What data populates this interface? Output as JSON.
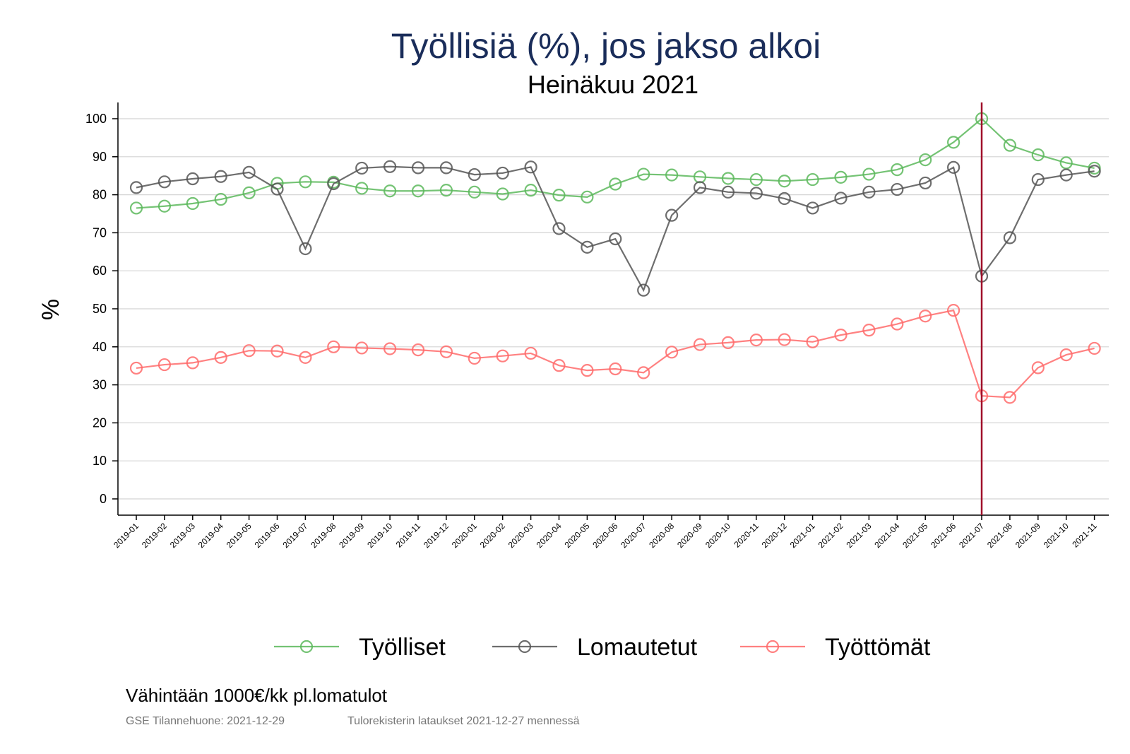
{
  "chart_data": {
    "type": "line",
    "title": "Työllisiä (%), jos jakso alkoi",
    "subtitle": "Heinäkuu 2021",
    "xlabel": "",
    "ylabel": "%",
    "ylim": [
      0,
      100
    ],
    "yticks": [
      0,
      10,
      20,
      30,
      40,
      50,
      60,
      70,
      80,
      90,
      100
    ],
    "grid": true,
    "legend_position": "bottom",
    "reference_line": {
      "x": "2021-07",
      "color": "#a0102a"
    },
    "categories": [
      "2019-01",
      "2019-02",
      "2019-03",
      "2019-04",
      "2019-05",
      "2019-06",
      "2019-07",
      "2019-08",
      "2019-09",
      "2019-10",
      "2019-11",
      "2019-12",
      "2020-01",
      "2020-02",
      "2020-03",
      "2020-04",
      "2020-05",
      "2020-06",
      "2020-07",
      "2020-08",
      "2020-09",
      "2020-10",
      "2020-11",
      "2020-12",
      "2021-01",
      "2021-02",
      "2021-03",
      "2021-04",
      "2021-05",
      "2021-06",
      "2021-07",
      "2021-08",
      "2021-09",
      "2021-10",
      "2021-11"
    ],
    "series": [
      {
        "name": "Työlliset",
        "color": "#5cb85c",
        "values": [
          76.5,
          77,
          77.7,
          78.8,
          80.5,
          83,
          83.4,
          83.3,
          81.7,
          81,
          81,
          81.2,
          80.7,
          80.2,
          81.2,
          79.9,
          79.4,
          82.8,
          85.4,
          85.2,
          84.7,
          84.3,
          84,
          83.6,
          84,
          84.6,
          85.4,
          86.6,
          89.2,
          93.8,
          100,
          93,
          90.5,
          88.4,
          87
        ],
        "draw_order": 0
      },
      {
        "name": "Lomautetut",
        "color": "#555555",
        "values": [
          81.9,
          83.4,
          84.2,
          84.8,
          85.9,
          81.5,
          65.8,
          82.9,
          87,
          87.4,
          87.1,
          87.1,
          85.3,
          85.7,
          87.3,
          71.1,
          66.2,
          68.4,
          54.9,
          74.6,
          81.9,
          80.7,
          80.4,
          79,
          76.5,
          79.1,
          80.7,
          81.4,
          83.1,
          87.2,
          58.6,
          68.7,
          84,
          85.2,
          86.2
        ],
        "draw_order": 1
      },
      {
        "name": "Työttömät",
        "color": "#ff6b6b",
        "values": [
          34.4,
          35.3,
          35.8,
          37.2,
          39,
          38.9,
          37.2,
          40,
          39.7,
          39.5,
          39.2,
          38.7,
          37,
          37.6,
          38.3,
          35.1,
          33.8,
          34.2,
          33.2,
          38.6,
          40.6,
          41.1,
          41.8,
          41.9,
          41.3,
          43.1,
          44.4,
          46,
          48.1,
          49.6,
          27.1,
          26.7,
          34.5,
          37.9,
          39.6
        ],
        "draw_order": 2
      }
    ]
  },
  "note": "Vähintään 1000€/kk pl.lomatulot",
  "source_left": "GSE Tilannehuone: 2021-12-29",
  "source_right": "Tulorekisterin lataukset 2021-12-27 mennessä"
}
